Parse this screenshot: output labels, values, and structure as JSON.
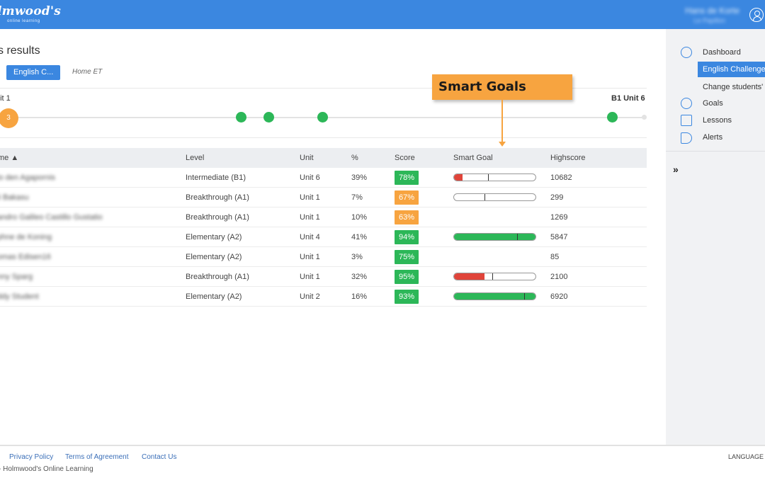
{
  "header": {
    "logo_text": "lmwood's",
    "logo_sub": "online learning",
    "user_name": "Hans de Korte",
    "user_org": "Le Papillon"
  },
  "page": {
    "title": "s results",
    "tabs": [
      {
        "label": "English C...",
        "active": true
      },
      {
        "label": "Home ET",
        "active": false
      }
    ]
  },
  "progress": {
    "start_label": "nit 1",
    "end_label": "B1 Unit 6",
    "bubble_count": "3"
  },
  "callout": {
    "label": "Smart Goals"
  },
  "table": {
    "headers": [
      "me ▲",
      "Level",
      "Unit",
      "%",
      "Score",
      "Smart Goal",
      "Highscore"
    ],
    "rows": [
      {
        "name": "lo den Agapornis",
        "level": "Intermediate (B1)",
        "unit": "Unit 6",
        "pct": "39%",
        "score": "78%",
        "score_color": "#2cb758",
        "goal": {
          "fill": 0.1,
          "marker": 0.42,
          "color": "#e0443a"
        },
        "highscore": "10682"
      },
      {
        "name": "ii Bakasu",
        "level": "Breakthrough (A1)",
        "unit": "Unit 1",
        "pct": "7%",
        "score": "67%",
        "score_color": "#f7a440",
        "goal": {
          "fill": 0.0,
          "marker": 0.37,
          "color": "#e0443a"
        },
        "highscore": "299"
      },
      {
        "name": "andro Galileo Castillo Gustatio",
        "level": "Breakthrough (A1)",
        "unit": "Unit 1",
        "pct": "10%",
        "score": "63%",
        "score_color": "#f7a440",
        "goal": null,
        "highscore": "1269"
      },
      {
        "name": "phne de Koning",
        "level": "Elementary (A2)",
        "unit": "Unit 4",
        "pct": "41%",
        "score": "94%",
        "score_color": "#2cb758",
        "goal": {
          "fill": 1.0,
          "marker": 0.77,
          "color": "#2cb758"
        },
        "highscore": "5847"
      },
      {
        "name": "omas Edisen16",
        "level": "Elementary (A2)",
        "unit": "Unit 1",
        "pct": "3%",
        "score": "75%",
        "score_color": "#2cb758",
        "goal": null,
        "highscore": "85"
      },
      {
        "name": "nny Sparg",
        "level": "Breakthrough (A1)",
        "unit": "Unit 1",
        "pct": "32%",
        "score": "95%",
        "score_color": "#2cb758",
        "goal": {
          "fill": 0.37,
          "marker": 0.47,
          "color": "#e0443a"
        },
        "highscore": "2100"
      },
      {
        "name": "ddy Student",
        "level": "Elementary (A2)",
        "unit": "Unit 2",
        "pct": "16%",
        "score": "93%",
        "score_color": "#2cb758",
        "goal": {
          "fill": 1.0,
          "marker": 0.86,
          "color": "#2cb758"
        },
        "highscore": "6920"
      }
    ]
  },
  "sidebar": {
    "items": [
      {
        "label": "Dashboard",
        "icon": "speedometer-icon"
      },
      {
        "label": "English Challenge",
        "icon": ""
      },
      {
        "label": "Change students' le",
        "icon": ""
      },
      {
        "label": "Goals",
        "icon": "target-icon"
      },
      {
        "label": "Lessons",
        "icon": "lessons-icon"
      },
      {
        "label": "Alerts",
        "icon": "megaphone-icon"
      }
    ],
    "expand": "»"
  },
  "footer": {
    "links": [
      "Privacy Policy",
      "Terms of Agreement",
      "Contact Us"
    ],
    "copyright": "- Holmwood's Online Learning",
    "language": "LANGUAGE"
  },
  "colors": {
    "brand_blue": "#3b87e0",
    "green": "#2cb758",
    "orange": "#f7a440",
    "red": "#e0443a"
  }
}
